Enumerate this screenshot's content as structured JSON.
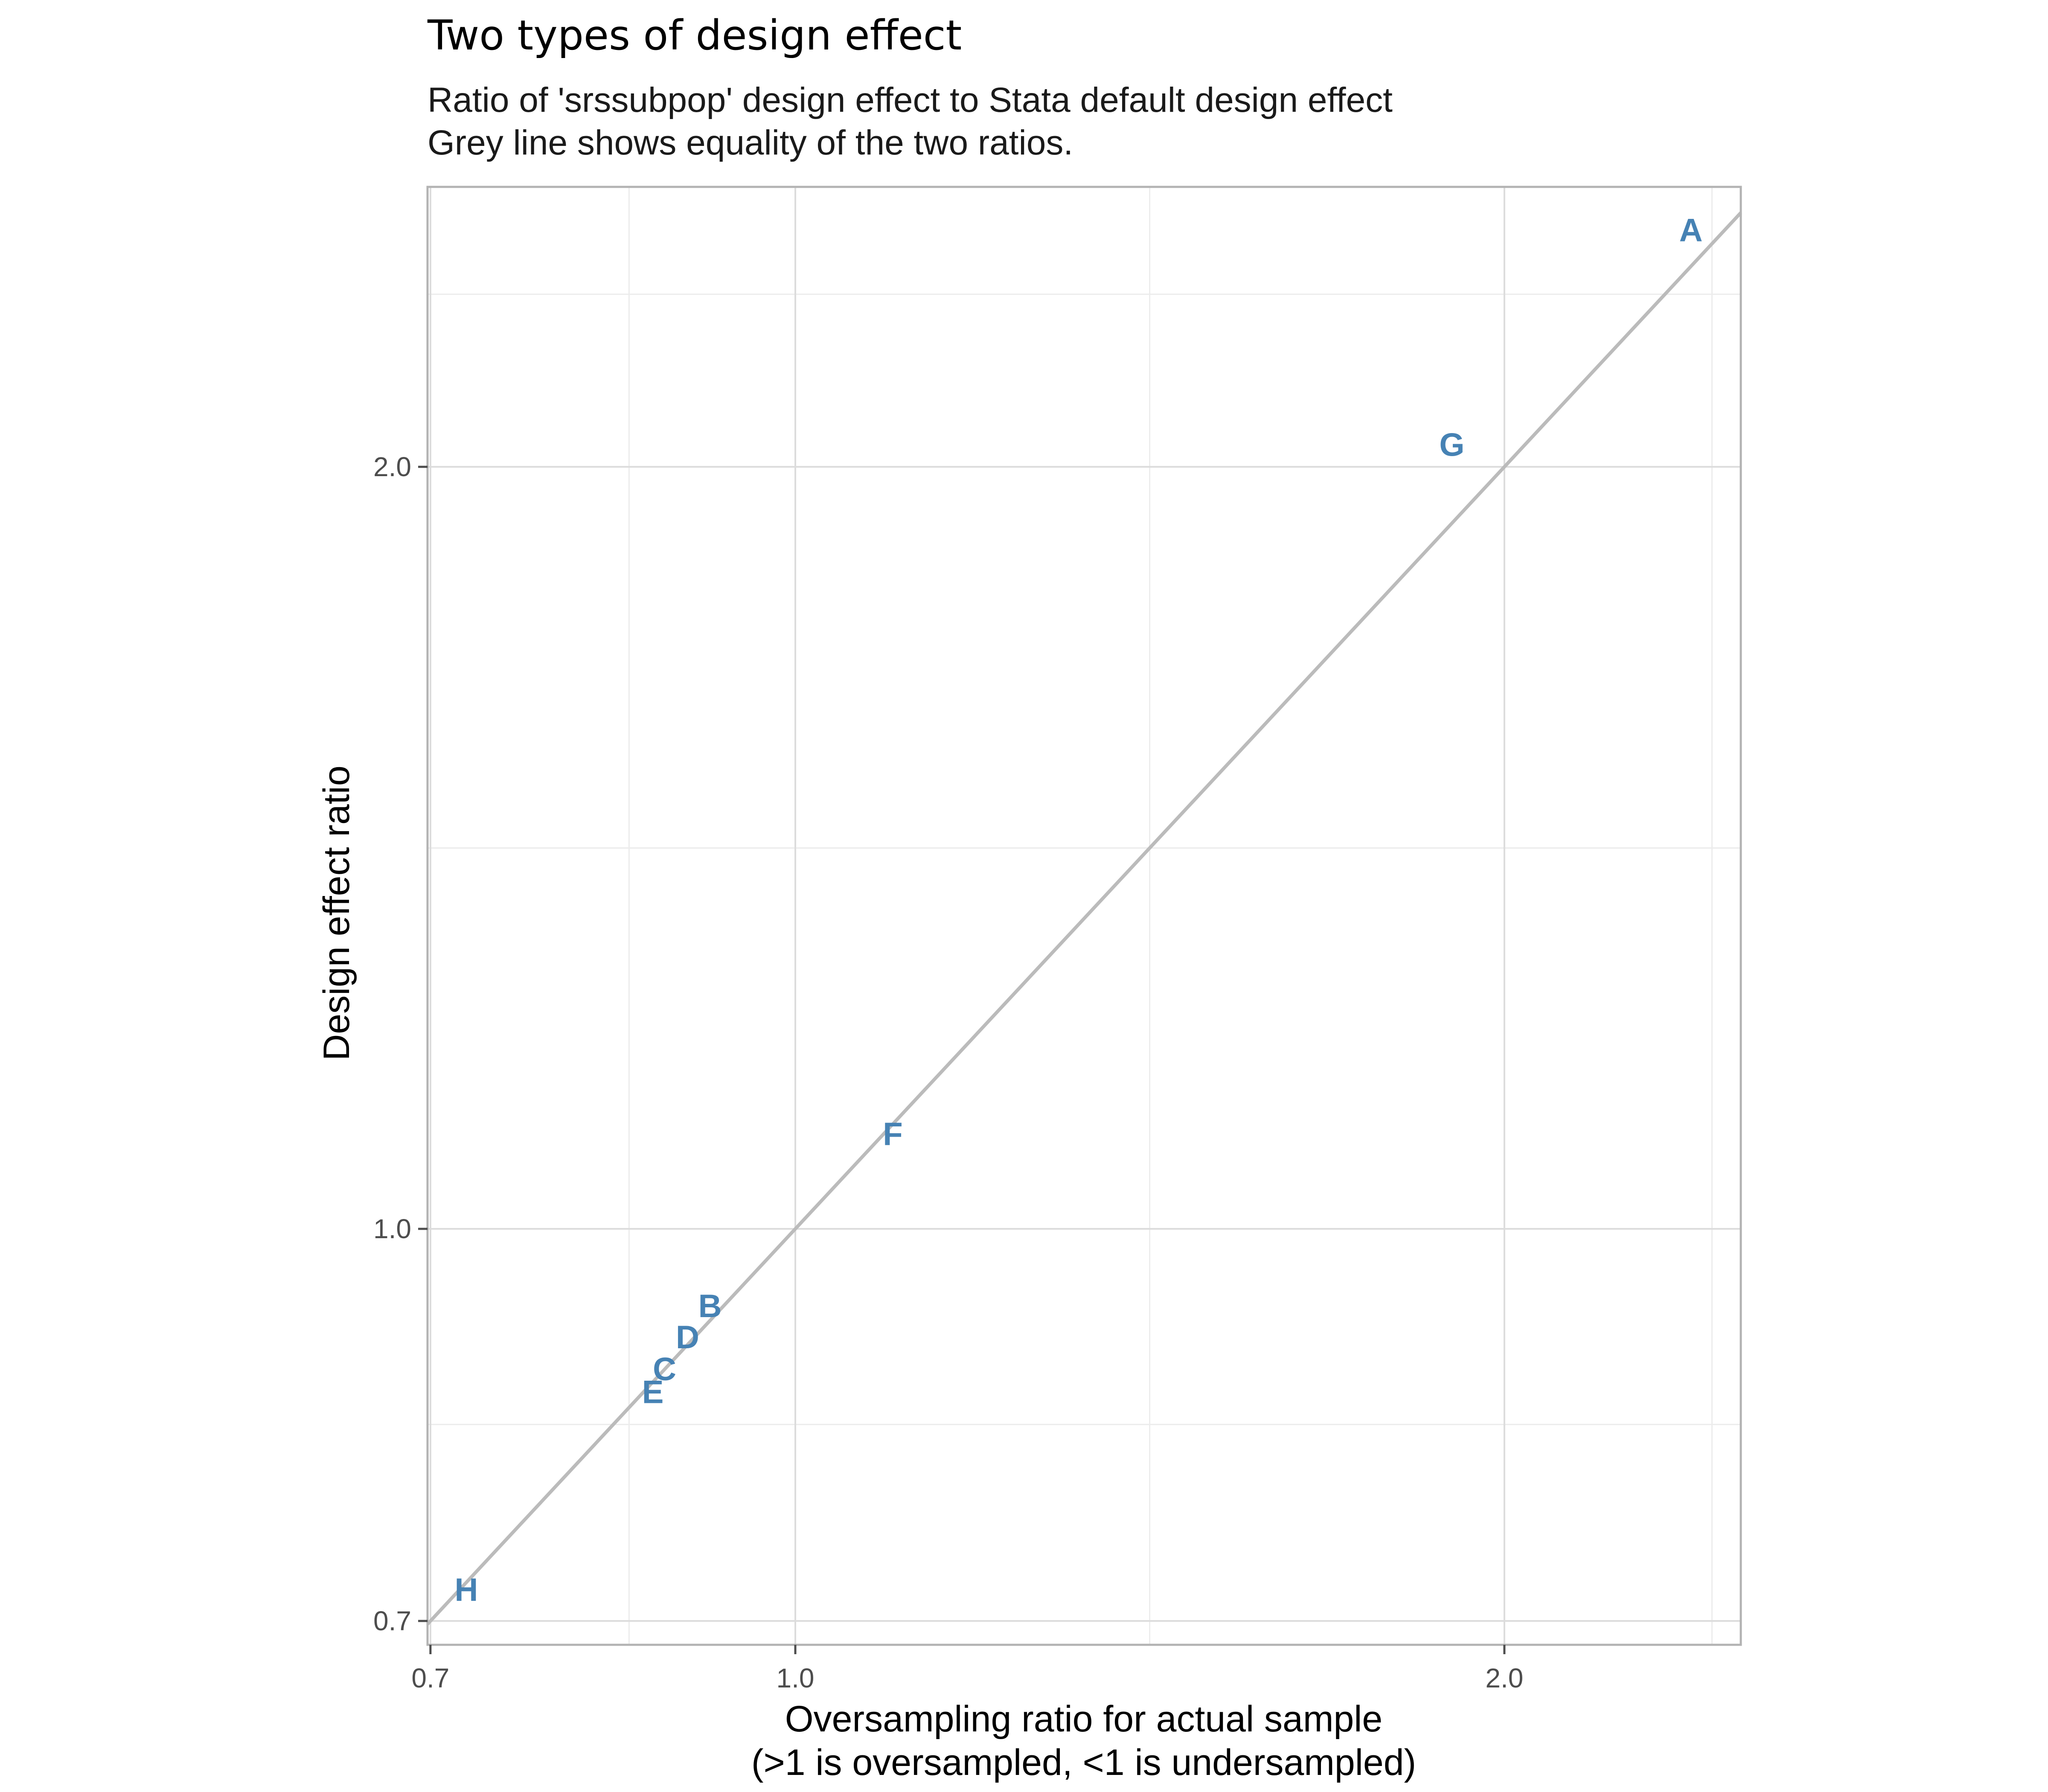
{
  "chart_data": {
    "type": "scatter",
    "title": "Two types of design effect",
    "subtitle_lines": [
      "Ratio of 'srssubpop' design effect to Stata default design effect",
      "Grey line shows equality of the two ratios."
    ],
    "xlabel_lines": [
      "Oversampling ratio for actual sample",
      "(>1 is oversampled, <1 is undersampled)"
    ],
    "ylabel": "Design effect ratio",
    "x_scale": "log",
    "y_scale": "log",
    "xlim": [
      0.698,
      2.52
    ],
    "ylim": [
      0.685,
      2.58
    ],
    "x_ticks": [
      {
        "value": 0.7,
        "label": "0.7"
      },
      {
        "value": 1.0,
        "label": "1.0"
      },
      {
        "value": 2.0,
        "label": "2.0"
      }
    ],
    "y_ticks": [
      {
        "value": 0.7,
        "label": "0.7"
      },
      {
        "value": 1.0,
        "label": "1.0"
      },
      {
        "value": 2.0,
        "label": "2.0"
      }
    ],
    "x_minor_gridlines": [
      0.85,
      1.414,
      2.45
    ],
    "y_minor_gridlines": [
      0.837,
      1.414,
      2.34
    ],
    "grid": true,
    "reference_line": {
      "type": "identity",
      "color": "#bbbbbb"
    },
    "point_color": "#4682b4",
    "points": [
      {
        "label": "A",
        "x": 2.4,
        "y": 2.48
      },
      {
        "label": "G",
        "x": 1.9,
        "y": 2.04
      },
      {
        "label": "F",
        "x": 1.1,
        "y": 1.09
      },
      {
        "label": "B",
        "x": 0.92,
        "y": 0.932
      },
      {
        "label": "D",
        "x": 0.9,
        "y": 0.906
      },
      {
        "label": "C",
        "x": 0.88,
        "y": 0.88
      },
      {
        "label": "E",
        "x": 0.87,
        "y": 0.862
      },
      {
        "label": "H",
        "x": 0.725,
        "y": 0.72
      }
    ]
  }
}
